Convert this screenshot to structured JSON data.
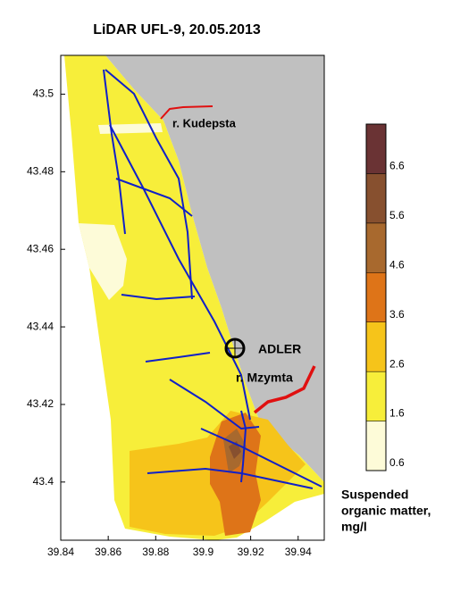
{
  "chart_data": {
    "type": "contour_map",
    "title": "LiDAR UFL-9, 20.05.2013",
    "xlim": [
      39.84,
      39.951
    ],
    "ylim": [
      43.385,
      43.51
    ],
    "xticks": [
      39.84,
      39.86,
      39.88,
      39.9,
      39.92,
      39.94
    ],
    "yticks": [
      43.4,
      43.42,
      43.44,
      43.46,
      43.48,
      43.5
    ],
    "annotations": {
      "kudepsta": "r. Kudepsta",
      "adler": "ADLER",
      "mzymta": "r. Mzymta"
    },
    "colorbar": {
      "levels": [
        0.6,
        1.6,
        2.6,
        3.6,
        4.6,
        5.6,
        6.6
      ],
      "lim": [
        0.6,
        7.6
      ],
      "colors": [
        "#fdfbd8",
        "#f7ee3a",
        "#f6c41a",
        "#de7418",
        "#a8692e",
        "#87502f",
        "#6a3334"
      ],
      "label": [
        "Suspended",
        "organic matter,",
        "mg/l"
      ]
    }
  }
}
